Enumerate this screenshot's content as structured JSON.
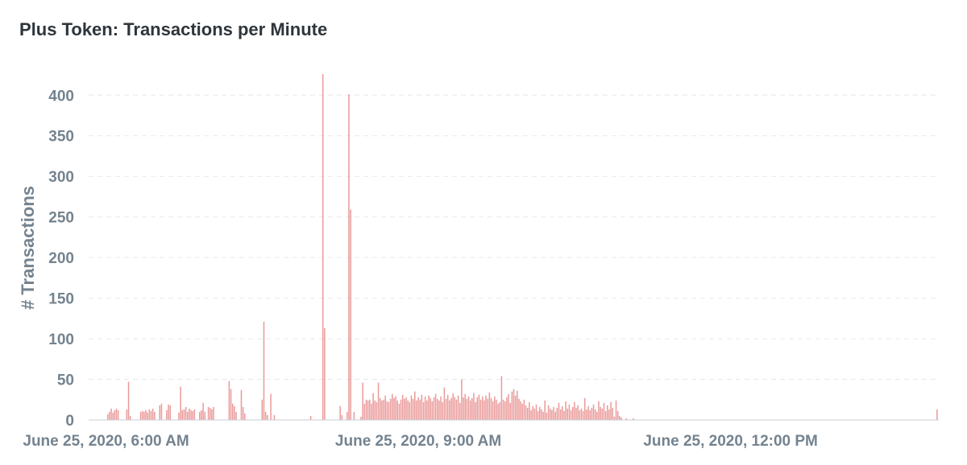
{
  "chart_data": {
    "type": "bar",
    "title": "Plus Token: Transactions per Minute",
    "ylabel": "# Transactions",
    "xlabel": "",
    "ylim": [
      0,
      430
    ],
    "y_ticks": [
      0,
      50,
      100,
      150,
      200,
      250,
      300,
      350,
      400
    ],
    "x_start": "June 25, 2020, 5:50 AM",
    "x_end": "June 25, 2020, 2:00 PM",
    "x_ticks": [
      {
        "time": "06:00",
        "label": "June 25, 2020, 6:00 AM"
      },
      {
        "time": "09:00",
        "label": "June 25, 2020, 9:00 AM"
      },
      {
        "time": "12:00",
        "label": "June 25, 2020, 12:00 PM"
      }
    ],
    "grid": true,
    "bar_color": "#ea9a9a",
    "points": [
      [
        "06:01",
        7
      ],
      [
        "06:02",
        10
      ],
      [
        "06:03",
        14
      ],
      [
        "06:04",
        9
      ],
      [
        "06:05",
        12
      ],
      [
        "06:06",
        14
      ],
      [
        "06:07",
        12
      ],
      [
        "06:12",
        13
      ],
      [
        "06:13",
        47
      ],
      [
        "06:14",
        5
      ],
      [
        "06:20",
        10
      ],
      [
        "06:21",
        11
      ],
      [
        "06:22",
        10
      ],
      [
        "06:23",
        12
      ],
      [
        "06:24",
        9
      ],
      [
        "06:25",
        13
      ],
      [
        "06:26",
        11
      ],
      [
        "06:27",
        14
      ],
      [
        "06:28",
        10
      ],
      [
        "06:31",
        18
      ],
      [
        "06:32",
        20
      ],
      [
        "06:35",
        12
      ],
      [
        "06:36",
        19
      ],
      [
        "06:37",
        18
      ],
      [
        "06:42",
        9
      ],
      [
        "06:43",
        41
      ],
      [
        "06:44",
        12
      ],
      [
        "06:45",
        13
      ],
      [
        "06:46",
        16
      ],
      [
        "06:47",
        10
      ],
      [
        "06:48",
        14
      ],
      [
        "06:49",
        12
      ],
      [
        "06:50",
        11
      ],
      [
        "06:51",
        13
      ],
      [
        "06:54",
        10
      ],
      [
        "06:55",
        12
      ],
      [
        "06:56",
        21
      ],
      [
        "06:57",
        10
      ],
      [
        "06:59",
        16
      ],
      [
        "07:00",
        15
      ],
      [
        "07:01",
        13
      ],
      [
        "07:02",
        16
      ],
      [
        "07:11",
        48
      ],
      [
        "07:12",
        38
      ],
      [
        "07:13",
        20
      ],
      [
        "07:14",
        17
      ],
      [
        "07:15",
        10
      ],
      [
        "07:18",
        37
      ],
      [
        "07:19",
        16
      ],
      [
        "07:20",
        8
      ],
      [
        "07:30",
        25
      ],
      [
        "07:31",
        121
      ],
      [
        "07:32",
        10
      ],
      [
        "07:33",
        6
      ],
      [
        "07:35",
        32
      ],
      [
        "07:37",
        6
      ],
      [
        "07:58",
        5
      ],
      [
        "08:05",
        426
      ],
      [
        "08:06",
        113
      ],
      [
        "08:15",
        17
      ],
      [
        "08:16",
        6
      ],
      [
        "08:19",
        10
      ],
      [
        "08:20",
        401
      ],
      [
        "08:21",
        259
      ],
      [
        "08:23",
        10
      ],
      [
        "08:27",
        4
      ],
      [
        "08:28",
        46
      ],
      [
        "08:29",
        20
      ],
      [
        "08:30",
        25
      ],
      [
        "08:31",
        24
      ],
      [
        "08:32",
        25
      ],
      [
        "08:33",
        20
      ],
      [
        "08:34",
        33
      ],
      [
        "08:35",
        24
      ],
      [
        "08:36",
        22
      ],
      [
        "08:37",
        46
      ],
      [
        "08:38",
        27
      ],
      [
        "08:39",
        24
      ],
      [
        "08:40",
        25
      ],
      [
        "08:41",
        30
      ],
      [
        "08:42",
        23
      ],
      [
        "08:43",
        22
      ],
      [
        "08:44",
        26
      ],
      [
        "08:45",
        32
      ],
      [
        "08:46",
        27
      ],
      [
        "08:47",
        29
      ],
      [
        "08:48",
        24
      ],
      [
        "08:49",
        20
      ],
      [
        "08:50",
        25
      ],
      [
        "08:51",
        31
      ],
      [
        "08:52",
        26
      ],
      [
        "08:53",
        28
      ],
      [
        "08:54",
        24
      ],
      [
        "08:55",
        22
      ],
      [
        "08:56",
        30
      ],
      [
        "08:57",
        26
      ],
      [
        "08:58",
        35
      ],
      [
        "08:59",
        24
      ],
      [
        "09:00",
        28
      ],
      [
        "09:01",
        25
      ],
      [
        "09:02",
        31
      ],
      [
        "09:03",
        22
      ],
      [
        "09:04",
        29
      ],
      [
        "09:05",
        24
      ],
      [
        "09:06",
        30
      ],
      [
        "09:07",
        27
      ],
      [
        "09:08",
        23
      ],
      [
        "09:09",
        28
      ],
      [
        "09:10",
        32
      ],
      [
        "09:11",
        26
      ],
      [
        "09:12",
        24
      ],
      [
        "09:13",
        29
      ],
      [
        "09:14",
        22
      ],
      [
        "09:15",
        40
      ],
      [
        "09:16",
        26
      ],
      [
        "09:17",
        31
      ],
      [
        "09:18",
        24
      ],
      [
        "09:19",
        27
      ],
      [
        "09:20",
        33
      ],
      [
        "09:21",
        28
      ],
      [
        "09:22",
        25
      ],
      [
        "09:23",
        30
      ],
      [
        "09:24",
        21
      ],
      [
        "09:25",
        50
      ],
      [
        "09:26",
        28
      ],
      [
        "09:27",
        32
      ],
      [
        "09:28",
        26
      ],
      [
        "09:29",
        29
      ],
      [
        "09:30",
        24
      ],
      [
        "09:31",
        27
      ],
      [
        "09:32",
        33
      ],
      [
        "09:33",
        22
      ],
      [
        "09:34",
        28
      ],
      [
        "09:35",
        31
      ],
      [
        "09:36",
        25
      ],
      [
        "09:37",
        29
      ],
      [
        "09:38",
        24
      ],
      [
        "09:39",
        30
      ],
      [
        "09:40",
        26
      ],
      [
        "09:41",
        34
      ],
      [
        "09:42",
        27
      ],
      [
        "09:43",
        23
      ],
      [
        "09:44",
        29
      ],
      [
        "09:45",
        25
      ],
      [
        "09:46",
        20
      ],
      [
        "09:47",
        22
      ],
      [
        "09:48",
        54
      ],
      [
        "09:49",
        25
      ],
      [
        "09:50",
        23
      ],
      [
        "09:51",
        28
      ],
      [
        "09:52",
        32
      ],
      [
        "09:53",
        21
      ],
      [
        "09:54",
        35
      ],
      [
        "09:55",
        38
      ],
      [
        "09:56",
        30
      ],
      [
        "09:57",
        36
      ],
      [
        "09:58",
        26
      ],
      [
        "09:59",
        23
      ],
      [
        "10:00",
        20
      ],
      [
        "10:01",
        25
      ],
      [
        "10:02",
        18
      ],
      [
        "10:03",
        15
      ],
      [
        "10:04",
        22
      ],
      [
        "10:05",
        12
      ],
      [
        "10:06",
        17
      ],
      [
        "10:07",
        14
      ],
      [
        "10:08",
        19
      ],
      [
        "10:09",
        11
      ],
      [
        "10:10",
        16
      ],
      [
        "10:11",
        13
      ],
      [
        "10:12",
        10
      ],
      [
        "10:13",
        24
      ],
      [
        "10:14",
        9
      ],
      [
        "10:15",
        18
      ],
      [
        "10:16",
        14
      ],
      [
        "10:17",
        12
      ],
      [
        "10:18",
        16
      ],
      [
        "10:19",
        10
      ],
      [
        "10:20",
        15
      ],
      [
        "10:21",
        21
      ],
      [
        "10:22",
        13
      ],
      [
        "10:23",
        17
      ],
      [
        "10:24",
        11
      ],
      [
        "10:25",
        23
      ],
      [
        "10:26",
        14
      ],
      [
        "10:27",
        19
      ],
      [
        "10:28",
        12
      ],
      [
        "10:29",
        16
      ],
      [
        "10:30",
        22
      ],
      [
        "10:31",
        15
      ],
      [
        "10:32",
        18
      ],
      [
        "10:33",
        12
      ],
      [
        "10:34",
        14
      ],
      [
        "10:35",
        11
      ],
      [
        "10:36",
        27
      ],
      [
        "10:37",
        13
      ],
      [
        "10:38",
        17
      ],
      [
        "10:39",
        12
      ],
      [
        "10:40",
        15
      ],
      [
        "10:41",
        19
      ],
      [
        "10:42",
        13
      ],
      [
        "10:43",
        10
      ],
      [
        "10:44",
        23
      ],
      [
        "10:45",
        16
      ],
      [
        "10:46",
        14
      ],
      [
        "10:47",
        21
      ],
      [
        "10:48",
        11
      ],
      [
        "10:49",
        18
      ],
      [
        "10:50",
        13
      ],
      [
        "10:51",
        22
      ],
      [
        "10:52",
        15
      ],
      [
        "10:53",
        4
      ],
      [
        "10:54",
        24
      ],
      [
        "10:55",
        11
      ],
      [
        "10:56",
        5
      ],
      [
        "10:57",
        3
      ],
      [
        "11:00",
        2
      ],
      [
        "11:04",
        2
      ],
      [
        "13:59",
        13
      ]
    ]
  }
}
